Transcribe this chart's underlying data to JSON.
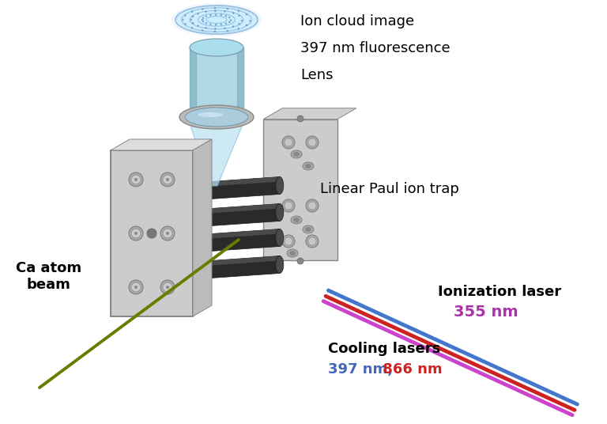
{
  "bg_color": "#ffffff",
  "labels": {
    "ion_cloud": "Ion cloud image",
    "fluorescence": "397 nm fluorescence",
    "lens": "Lens",
    "trap": "Linear Paul ion trap",
    "ca_beam": "Ca atom\nbeam",
    "ionization": "Ionization laser",
    "ionization_nm": "355 nm",
    "cooling": "Cooling lasers",
    "cooling_nm_blue": "397 nm,",
    "cooling_nm_red": " 866 nm"
  },
  "colors": {
    "ionization_laser": "#CC44CC",
    "cooling_blue": "#4477CC",
    "cooling_red": "#CC2222",
    "ca_beam": "#6B7B00",
    "label_ionization": "#AA33AA",
    "label_397": "#4466BB",
    "label_866": "#CC2222",
    "trap_light": "#D0D0D0",
    "trap_mid": "#B0B0B0",
    "trap_dark": "#909090",
    "rod_dark": "#2A2A2A",
    "rod_mid": "#4A4A4A",
    "rod_light": "#6A6A6A",
    "flange_light": "#CCCCCC",
    "flange_dark": "#AAAAAA",
    "bolt_color": "#999999",
    "cone_blue": "#AADDEE",
    "lens_color": "#BBCCDD",
    "cloud_color": "#AACCEE"
  },
  "figsize": [
    7.68,
    5.36
  ],
  "dpi": 100
}
